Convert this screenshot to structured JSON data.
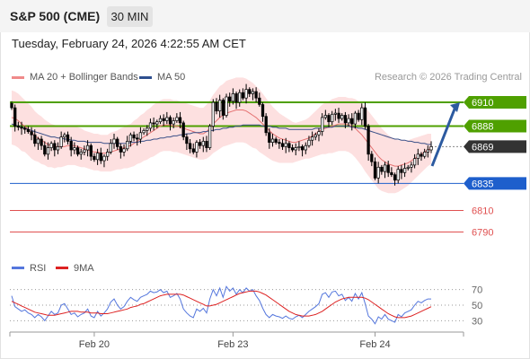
{
  "header": {
    "title": "S&P 500 (CME)",
    "interval": "30 MIN",
    "timestamp": "Tuesday, February 24, 2026 4:22:55 AM CET"
  },
  "legend": {
    "items": [
      {
        "label": "MA 20 + Bollinger Bands",
        "color": "#f08a8a"
      },
      {
        "label": "MA 50",
        "color": "#2e4f8f"
      }
    ],
    "rsi_items": [
      {
        "label": "RSI",
        "color": "#5577dd"
      },
      {
        "label": "9MA",
        "color": "#dd2222"
      }
    ],
    "credit": "Research © 2026 Trading Central"
  },
  "colors": {
    "resistance": "#4fa000",
    "pivot": "#1e5fcc",
    "support": "#e05050",
    "last_price": "#333333",
    "up_candle": "#ffffff",
    "down_candle": "#000000",
    "bollinger_band": "#fde0e0",
    "arrow": "#2c5aa0"
  },
  "chart_data": [
    {
      "type": "candlestick",
      "title": "S&P 500 (CME)",
      "interval": "30 MIN",
      "ylim": [
        6768,
        6925
      ],
      "x_tick_labels": [
        "Feb 20",
        "Feb 23",
        "Feb 24"
      ],
      "levels": [
        {
          "value": 6910,
          "label": "6910",
          "kind": "resistance"
        },
        {
          "value": 6888,
          "label": "6888",
          "kind": "resistance"
        },
        {
          "value": 6869,
          "label": "6869",
          "kind": "last"
        },
        {
          "value": 6835,
          "label": "6835",
          "kind": "pivot"
        },
        {
          "value": 6810,
          "label": "6810",
          "kind": "support"
        },
        {
          "value": 6790,
          "label": "6790",
          "kind": "support"
        }
      ],
      "close": [
        6905,
        6888,
        6887,
        6886,
        6885,
        6883,
        6880,
        6872,
        6876,
        6870,
        6862,
        6868,
        6872,
        6866,
        6869,
        6878,
        6880,
        6874,
        6866,
        6868,
        6862,
        6864,
        6866,
        6870,
        6860,
        6857,
        6863,
        6856,
        6860,
        6864,
        6872,
        6876,
        6869,
        6864,
        6867,
        6874,
        6880,
        6877,
        6876,
        6882,
        6884,
        6886,
        6891,
        6890,
        6892,
        6895,
        6893,
        6896,
        6890,
        6893,
        6896,
        6891,
        6878,
        6872,
        6867,
        6864,
        6873,
        6870,
        6874,
        6868,
        6888,
        6910,
        6902,
        6912,
        6898,
        6915,
        6911,
        6918,
        6910,
        6919,
        6914,
        6922,
        6918,
        6920,
        6914,
        6908,
        6897,
        6882,
        6873,
        6876,
        6873,
        6872,
        6869,
        6872,
        6868,
        6866,
        6868,
        6869,
        6866,
        6870,
        6875,
        6878,
        6880,
        6883,
        6896,
        6898,
        6892,
        6899,
        6900,
        6895,
        6898,
        6891,
        6895,
        6890,
        6900,
        6894,
        6905,
        6888,
        6862,
        6855,
        6840,
        6850,
        6846,
        6852,
        6845,
        6843,
        6838,
        6848,
        6845,
        6849,
        6850,
        6852,
        6858,
        6862,
        6860,
        6864,
        6866,
        6869
      ],
      "ma20": [
        6896,
        6895,
        6893,
        6890,
        6888,
        6885,
        6882,
        6879,
        6877,
        6875,
        6873,
        6871,
        6870,
        6869,
        6869,
        6869,
        6869,
        6870,
        6870,
        6870,
        6869,
        6868,
        6867,
        6866,
        6865,
        6864,
        6864,
        6863,
        6863,
        6863,
        6864,
        6865,
        6866,
        6867,
        6868,
        6869,
        6870,
        6872,
        6874,
        6876,
        6878,
        6880,
        6882,
        6884,
        6886,
        6888,
        6889,
        6889,
        6889,
        6888,
        6888,
        6887,
        6886,
        6885,
        6884,
        6883,
        6882,
        6881,
        6881,
        6883,
        6886,
        6890,
        6893,
        6896,
        6898,
        6900,
        6901,
        6902,
        6903,
        6903,
        6903,
        6902,
        6900,
        6898,
        6896,
        6893,
        6890,
        6887,
        6884,
        6881,
        6879,
        6877,
        6876,
        6875,
        6874,
        6873,
        6873,
        6874,
        6875,
        6876,
        6877,
        6879,
        6881,
        6883,
        6885,
        6886,
        6887,
        6888,
        6889,
        6890,
        6890,
        6890,
        6889,
        6888,
        6886,
        6883,
        6880,
        6876,
        6872,
        6868,
        6864,
        6860,
        6857,
        6855,
        6853,
        6852,
        6851,
        6851,
        6852,
        6853,
        6854,
        6856,
        6858,
        6860,
        6862,
        6864,
        6866,
        6867
      ],
      "ma50": [
        6890,
        6889,
        6888,
        6887,
        6886,
        6885,
        6884,
        6883,
        6882,
        6881,
        6880,
        6879,
        6878,
        6878,
        6877,
        6877,
        6876,
        6876,
        6875,
        6875,
        6874,
        6874,
        6874,
        6873,
        6873,
        6873,
        6873,
        6873,
        6872,
        6872,
        6872,
        6872,
        6872,
        6872,
        6872,
        6872,
        6873,
        6873,
        6873,
        6874,
        6874,
        6875,
        6875,
        6876,
        6876,
        6877,
        6877,
        6878,
        6878,
        6879,
        6879,
        6880,
        6880,
        6881,
        6881,
        6882,
        6882,
        6882,
        6883,
        6883,
        6884,
        6884,
        6885,
        6885,
        6886,
        6886,
        6887,
        6887,
        6888,
        6888,
        6889,
        6889,
        6889,
        6889,
        6889,
        6889,
        6888,
        6888,
        6888,
        6887,
        6887,
        6886,
        6886,
        6886,
        6885,
        6885,
        6885,
        6885,
        6885,
        6885,
        6885,
        6885,
        6886,
        6886,
        6886,
        6887,
        6887,
        6887,
        6888,
        6888,
        6888,
        6888,
        6888,
        6887,
        6887,
        6886,
        6886,
        6885,
        6884,
        6883,
        6882,
        6881,
        6880,
        6879,
        6878,
        6877,
        6876,
        6876,
        6875,
        6875,
        6874,
        6874,
        6873,
        6873,
        6872,
        6872,
        6871,
        6871
      ],
      "bollinger_width": [
        25,
        25,
        25,
        25,
        24,
        24,
        24,
        23,
        22,
        22,
        21,
        21,
        20,
        20,
        19,
        19,
        18,
        18,
        18,
        18,
        18,
        18,
        17,
        17,
        17,
        17,
        17,
        17,
        17,
        17,
        18,
        18,
        18,
        19,
        19,
        20,
        20,
        21,
        21,
        22,
        22,
        23,
        23,
        24,
        24,
        24,
        24,
        24,
        24,
        24,
        24,
        24,
        24,
        24,
        24,
        24,
        24,
        24,
        24,
        25,
        26,
        27,
        28,
        29,
        29,
        30,
        30,
        30,
        30,
        30,
        30,
        30,
        30,
        30,
        29,
        29,
        28,
        27,
        26,
        25,
        24,
        23,
        22,
        21,
        20,
        19,
        18,
        18,
        18,
        18,
        19,
        20,
        21,
        22,
        23,
        24,
        24,
        25,
        25,
        25,
        25,
        25,
        25,
        26,
        27,
        28,
        29,
        30,
        30,
        30,
        30,
        30,
        29,
        28,
        27,
        26,
        25,
        24,
        23,
        22,
        21,
        20,
        19,
        18,
        17,
        16,
        15,
        14
      ]
    },
    {
      "type": "line",
      "title": "RSI",
      "ylim": [
        20,
        80
      ],
      "y_tick_labels": [
        "70",
        "50",
        "30"
      ],
      "y_ticks": [
        70,
        50,
        30
      ],
      "series": [
        {
          "name": "RSI",
          "values": [
            62,
            48,
            45,
            42,
            44,
            40,
            38,
            34,
            38,
            35,
            30,
            36,
            42,
            38,
            40,
            50,
            52,
            45,
            38,
            40,
            35,
            38,
            40,
            45,
            36,
            34,
            42,
            36,
            40,
            45,
            54,
            58,
            50,
            45,
            48,
            55,
            60,
            57,
            55,
            60,
            62,
            64,
            68,
            66,
            67,
            70,
            66,
            68,
            60,
            62,
            65,
            58,
            45,
            40,
            36,
            34,
            45,
            42,
            46,
            40,
            58,
            70,
            62,
            72,
            60,
            74,
            68,
            72,
            64,
            70,
            66,
            72,
            68,
            70,
            62,
            56,
            46,
            38,
            34,
            38,
            36,
            35,
            33,
            36,
            33,
            32,
            35,
            37,
            34,
            38,
            42,
            45,
            48,
            52,
            64,
            66,
            60,
            67,
            68,
            62,
            64,
            56,
            60,
            55,
            65,
            58,
            66,
            52,
            36,
            32,
            26,
            35,
            32,
            38,
            32,
            30,
            28,
            38,
            35,
            40,
            42,
            44,
            50,
            55,
            53,
            56,
            58,
            58
          ]
        },
        {
          "name": "9MA",
          "values": [
            55,
            53,
            51,
            49,
            47,
            45,
            43,
            41,
            40,
            39,
            38,
            37,
            37,
            37,
            38,
            39,
            40,
            41,
            42,
            42,
            42,
            41,
            41,
            41,
            40,
            40,
            40,
            39,
            39,
            39,
            40,
            41,
            42,
            43,
            44,
            45,
            47,
            48,
            49,
            51,
            52,
            54,
            56,
            58,
            60,
            62,
            63,
            64,
            64,
            64,
            64,
            64,
            63,
            61,
            59,
            57,
            55,
            53,
            51,
            49,
            49,
            50,
            51,
            53,
            55,
            57,
            59,
            61,
            63,
            65,
            66,
            67,
            68,
            68,
            68,
            67,
            65,
            63,
            60,
            57,
            54,
            51,
            48,
            45,
            42,
            40,
            38,
            37,
            36,
            36,
            36,
            37,
            38,
            40,
            42,
            45,
            48,
            51,
            54,
            56,
            58,
            59,
            60,
            60,
            60,
            60,
            60,
            59,
            57,
            54,
            51,
            48,
            45,
            42,
            39,
            37,
            35,
            34,
            34,
            34,
            35,
            36,
            38,
            40,
            42,
            44,
            46,
            48
          ]
        }
      ]
    }
  ]
}
